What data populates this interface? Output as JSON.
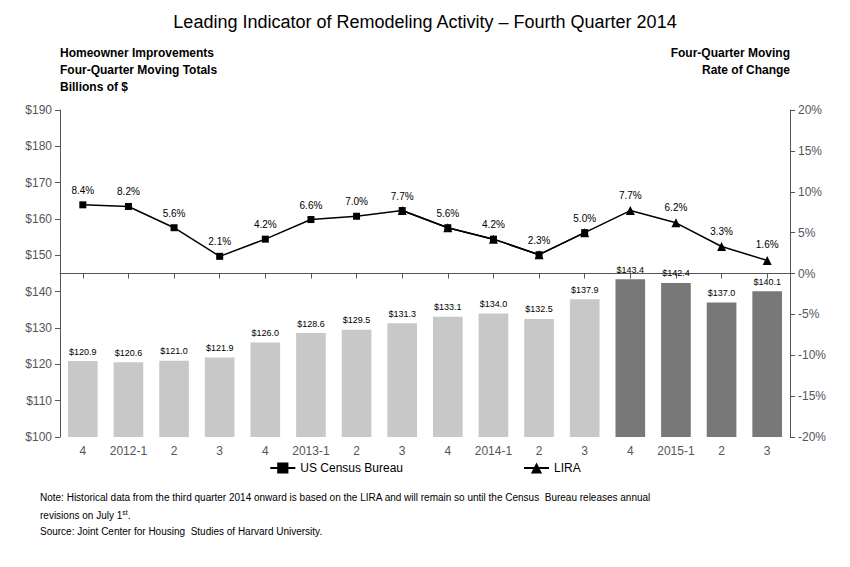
{
  "chart_data": {
    "type": "bar",
    "title": "Leading Indicator of Remodeling Activity – Fourth Quarter 2014",
    "categories": [
      "4",
      "2012-1",
      "2",
      "3",
      "4",
      "2013-1",
      "2",
      "3",
      "4",
      "2014-1",
      "2",
      "3",
      "4",
      "2015-1",
      "2",
      "3"
    ],
    "series": [
      {
        "type": "bar",
        "colors": [
          "#c8c8c8",
          "#c8c8c8",
          "#c8c8c8",
          "#c8c8c8",
          "#c8c8c8",
          "#c8c8c8",
          "#c8c8c8",
          "#c8c8c8",
          "#c8c8c8",
          "#c8c8c8",
          "#c8c8c8",
          "#c8c8c8",
          "#787878",
          "#787878",
          "#787878",
          "#787878"
        ],
        "values": [
          120.9,
          120.6,
          121.0,
          121.9,
          126.0,
          128.6,
          129.5,
          131.3,
          133.1,
          134.0,
          132.5,
          137.9,
          143.4,
          142.4,
          137.0,
          140.1
        ],
        "value_labels": [
          "$120.9",
          "$120.6",
          "$121.0",
          "$121.9",
          "$126.0",
          "$128.6",
          "$129.5",
          "$131.3",
          "$133.1",
          "$134.0",
          "$132.5",
          "$137.9",
          "$143.4",
          "$142.4",
          "$137.0",
          "$140.1"
        ]
      },
      {
        "name": "US Census Bureau",
        "type": "line",
        "axis": "y2",
        "color": "#000000",
        "marker": "square",
        "line_style": "solid",
        "values": [
          8.4,
          8.2,
          5.6,
          2.1,
          4.2,
          6.6,
          7.0,
          7.7,
          5.6,
          4.2,
          2.3,
          5.0,
          null,
          null,
          null,
          null
        ],
        "value_labels": [
          "8.4%",
          "8.2%",
          "5.6%",
          "2.1%",
          "4.2%",
          "6.6%",
          "7.0%",
          "7.7%",
          "5.6%",
          "4.2%",
          "2.3%",
          "5.0%",
          null,
          null,
          null,
          null
        ]
      },
      {
        "name": "LIRA",
        "type": "line",
        "axis": "y2",
        "color": "#000000",
        "marker": "triangle",
        "line_style": "solid",
        "values": [
          null,
          null,
          null,
          null,
          null,
          null,
          null,
          7.7,
          5.6,
          4.2,
          2.3,
          5.0,
          7.7,
          6.2,
          3.3,
          1.6
        ],
        "value_labels": [
          null,
          null,
          null,
          null,
          null,
          null,
          null,
          null,
          null,
          null,
          null,
          null,
          "7.7%",
          "6.2%",
          "3.3%",
          "1.6%"
        ]
      }
    ],
    "ylim": [
      100,
      190
    ],
    "yticks": [
      {
        "value": 100,
        "label": "$100"
      },
      {
        "value": 110,
        "label": "$110"
      },
      {
        "value": 120,
        "label": "$120"
      },
      {
        "value": 130,
        "label": "$130"
      },
      {
        "value": 140,
        "label": "$140"
      },
      {
        "value": 150,
        "label": "$150"
      },
      {
        "value": 160,
        "label": "$160"
      },
      {
        "value": 170,
        "label": "$170"
      },
      {
        "value": 180,
        "label": "$180"
      },
      {
        "value": 190,
        "label": "$190"
      }
    ],
    "y2lim": [
      -20,
      20
    ],
    "y2ticks": [
      {
        "value": -20,
        "label": "-20%"
      },
      {
        "value": -15,
        "label": "-15%"
      },
      {
        "value": -10,
        "label": "-10%"
      },
      {
        "value": -5,
        "label": "-5%"
      },
      {
        "value": 0,
        "label": "0%"
      },
      {
        "value": 5,
        "label": "5%"
      },
      {
        "value": 10,
        "label": "10%"
      },
      {
        "value": 15,
        "label": "15%"
      },
      {
        "value": 20,
        "label": "20%"
      }
    ],
    "y_label": [
      "Homeowner Improvements",
      "Four-Quarter Moving Totals",
      "Billions of $"
    ],
    "y2_label": [
      "Four-Quarter Moving",
      "Rate of Change"
    ],
    "grid": false,
    "data_labels": true,
    "legend": "bottom",
    "annotations": [
      "Note: Historical data from the third quarter 2014 onward is based on the LIRA and will remain so until the Census  Bureau releases annual",
      [
        "revisions on July 1",
        "st",
        "."
      ],
      "Source: Joint Center for Housing  Studies of Harvard University."
    ]
  }
}
